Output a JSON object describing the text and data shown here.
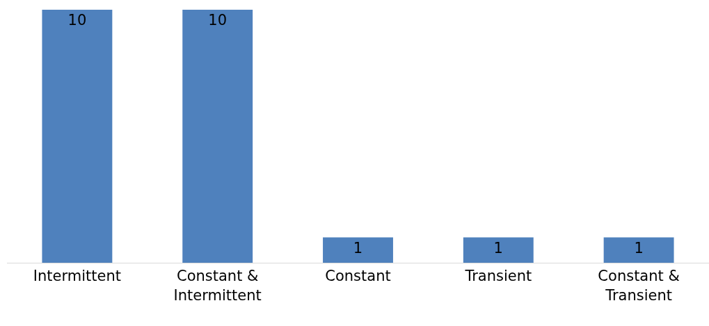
{
  "chart_data": {
    "type": "bar",
    "categories": [
      "Intermittent",
      "Constant & Intermittent",
      "Constant",
      "Transient",
      "Constant & Transient"
    ],
    "values": [
      10,
      10,
      1,
      1,
      1
    ],
    "color": "#4f81bd",
    "data_labels": true,
    "legend": false
  }
}
